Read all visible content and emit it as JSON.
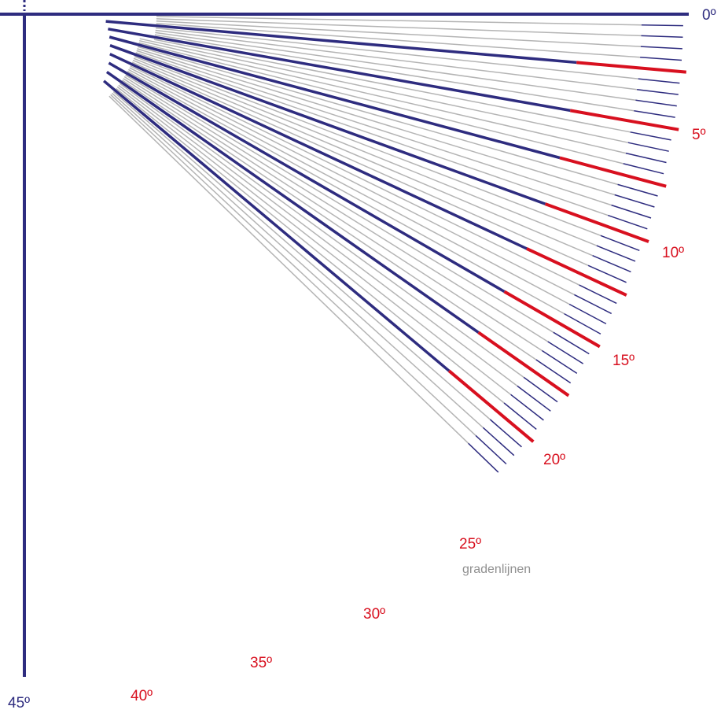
{
  "diagram": {
    "caption": "gradenlijnen",
    "colors": {
      "major": "#2e2c7f",
      "minor": "#2e2c7f",
      "guide": "#b4b4b4",
      "highlight": "#d8101f",
      "caption": "#909090"
    },
    "angles_degrees": {
      "start": 0,
      "end": 45,
      "minor_step": 1,
      "major_step": 5
    },
    "labels": [
      {
        "deg": 0,
        "text": "0º",
        "color": "#2e2c7f"
      },
      {
        "deg": 5,
        "text": "5º",
        "color": "#d8101f"
      },
      {
        "deg": 10,
        "text": "10º",
        "color": "#d8101f"
      },
      {
        "deg": 15,
        "text": "15º",
        "color": "#d8101f"
      },
      {
        "deg": 20,
        "text": "20º",
        "color": "#d8101f"
      },
      {
        "deg": 25,
        "text": "25º",
        "color": "#d8101f"
      },
      {
        "deg": 30,
        "text": "30º",
        "color": "#d8101f"
      },
      {
        "deg": 35,
        "text": "35º",
        "color": "#d8101f"
      },
      {
        "deg": 40,
        "text": "40º",
        "color": "#d8101f"
      },
      {
        "deg": 45,
        "text": "45º",
        "color": "#2e2c7f"
      }
    ]
  }
}
